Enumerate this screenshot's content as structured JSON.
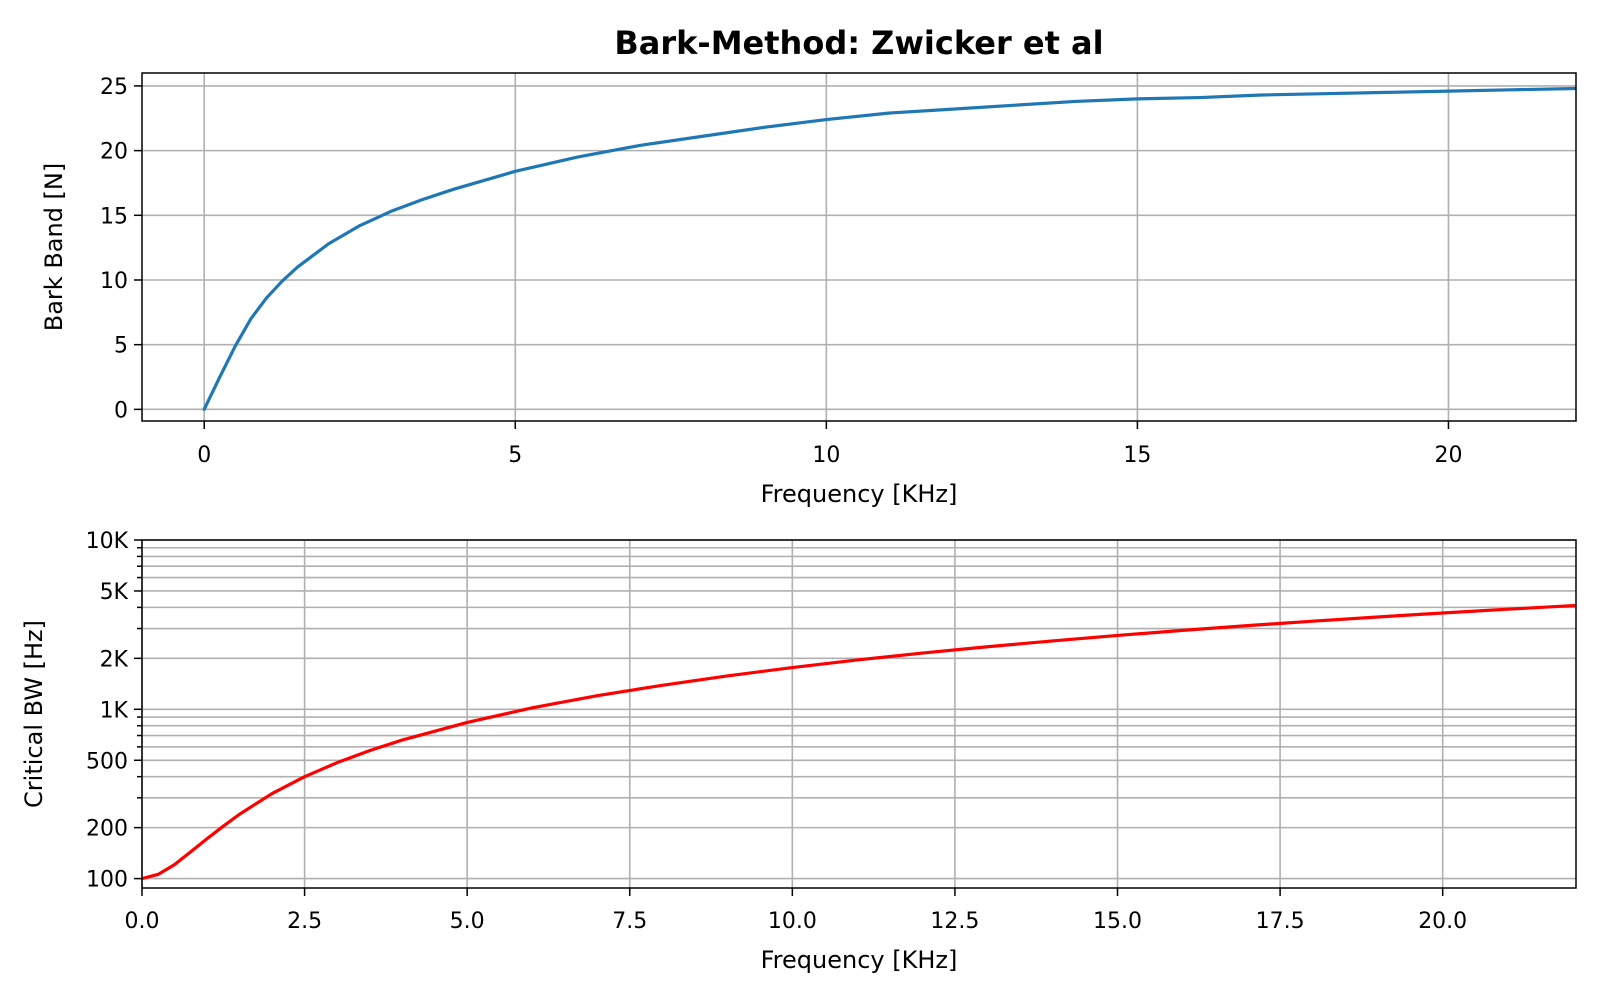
{
  "figure_title": "Bark-Method: Zwicker et al",
  "chart_data": [
    {
      "type": "line",
      "title": "Bark-Method: Zwicker et al",
      "xlabel": "Frequency [KHz]",
      "ylabel": "Bark Band [N]",
      "xlim": [
        -1,
        22.05
      ],
      "ylim": [
        -0.9,
        26
      ],
      "yscale": "linear",
      "grid": true,
      "xticks": [
        0,
        5,
        10,
        15,
        20
      ],
      "xtick_labels": [
        "0",
        "5",
        "10",
        "15",
        "20"
      ],
      "yticks": [
        0,
        5,
        10,
        15,
        20,
        25
      ],
      "ytick_labels": [
        "0",
        "5",
        "10",
        "15",
        "20",
        "25"
      ],
      "series": [
        {
          "color": "#1f77b4",
          "x": [
            0,
            0.25,
            0.5,
            0.75,
            1.0,
            1.25,
            1.5,
            2.0,
            2.5,
            3.0,
            3.5,
            4.0,
            5.0,
            6.0,
            7.0,
            8.0,
            9.0,
            10.0,
            11.0,
            12.0,
            13.0,
            14.0,
            15.0,
            16.0,
            17.0,
            18.0,
            19.0,
            20.0,
            21.0,
            22.05
          ],
          "y": [
            0,
            2.5,
            4.9,
            7.0,
            8.6,
            9.9,
            11.0,
            12.8,
            14.2,
            15.3,
            16.2,
            17.0,
            18.4,
            19.5,
            20.4,
            21.1,
            21.8,
            22.4,
            22.9,
            23.2,
            23.5,
            23.8,
            24.0,
            24.1,
            24.3,
            24.4,
            24.5,
            24.6,
            24.7,
            24.8
          ]
        }
      ]
    },
    {
      "type": "line",
      "xlabel": "Frequency [KHz]",
      "ylabel": "Critical BW [Hz]",
      "xlim": [
        0,
        22.05
      ],
      "ylim": [
        88,
        10000
      ],
      "yscale": "log",
      "grid": true,
      "xticks": [
        0,
        2.5,
        5,
        7.5,
        10,
        12.5,
        15,
        17.5,
        20
      ],
      "xtick_labels": [
        "0.0",
        "2.5",
        "5.0",
        "7.5",
        "10.0",
        "12.5",
        "15.0",
        "17.5",
        "20.0"
      ],
      "yticks": [
        100,
        200,
        500,
        1000,
        2000,
        5000,
        10000
      ],
      "ytick_labels": [
        "100",
        "200",
        "500",
        "1K",
        "2K",
        "5K",
        "10K"
      ],
      "minor_yticks": [
        300,
        400,
        600,
        700,
        800,
        900,
        3000,
        4000,
        6000,
        7000,
        8000,
        9000
      ],
      "series": [
        {
          "color": "#ff0000",
          "x": [
            0,
            0.25,
            0.5,
            0.75,
            1.0,
            1.25,
            1.5,
            2.0,
            2.5,
            3.0,
            3.5,
            4.0,
            5.0,
            6.0,
            7.0,
            8.0,
            9.0,
            10.0,
            11.0,
            12.0,
            13.0,
            14.0,
            15.0,
            16.0,
            17.0,
            18.0,
            19.0,
            20.0,
            21.0,
            22.05
          ],
          "y": [
            100,
            106,
            121,
            144,
            172,
            204,
            240,
            318,
            400,
            484,
            570,
            658,
            836,
            1020,
            1203,
            1386,
            1575,
            1765,
            1956,
            2148,
            2341,
            2535,
            2730,
            2925,
            3120,
            3315,
            3510,
            3706,
            3902,
            4107
          ]
        }
      ]
    }
  ]
}
